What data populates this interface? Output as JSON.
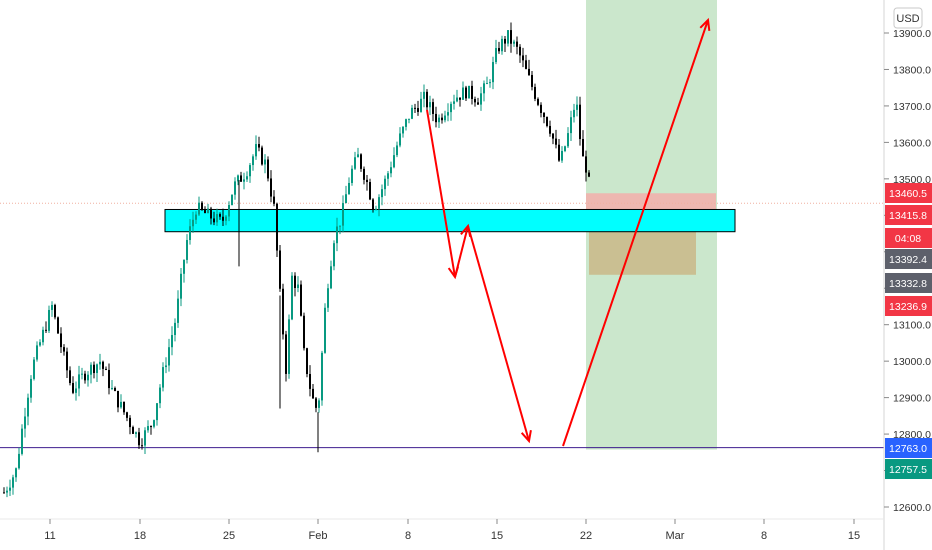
{
  "currency_label": "USD",
  "chart_data": {
    "type": "candlestick",
    "y_axis_ticks": [
      12600,
      12700,
      12800,
      12900,
      13000,
      13100,
      13200,
      13300,
      13400,
      13500,
      13600,
      13700,
      13800,
      13900
    ],
    "y_tick_labels": [
      "12600.0",
      "12700.0",
      "12800.0",
      "12900.0",
      "13000.0",
      "13100.0",
      "13200.0",
      "13300.0",
      "13400.0",
      "13500.0",
      "13600.0",
      "13700.0",
      "13800.0",
      "13900.0"
    ],
    "x_tick_labels": [
      "11",
      "18",
      "25",
      "Feb",
      "8",
      "15",
      "22",
      "Mar",
      "8",
      "15"
    ],
    "price_badges": [
      {
        "label": "13460.5",
        "color": "#f23645"
      },
      {
        "label": "13415.8",
        "color": "#f23645"
      },
      {
        "label": "04:08",
        "color": "#f23645"
      },
      {
        "label": "13392.4",
        "color": "#5d606b"
      },
      {
        "label": "13332.8",
        "color": "#5d606b"
      },
      {
        "label": "13236.9",
        "color": "#f23645"
      },
      {
        "label": "12763.0",
        "color": "#2962ff"
      },
      {
        "label": "12757.5",
        "color": "#089981"
      }
    ],
    "support_line": 12763.0,
    "last_price": 13415.8,
    "zone": {
      "top": 13416,
      "bottom": 13355
    },
    "target_zone": {
      "top": 13990,
      "bottom": 12757.5
    },
    "risk_zone": {
      "top": 13460.5,
      "bottom": 13392.4
    },
    "reward_zone": {
      "top": 13392.4,
      "bottom": 13236.9
    },
    "colors": {
      "up": "#089981",
      "down": "#000000",
      "arrow": "#ff0000",
      "zone": "#00ffff",
      "target": "#c8e6c9",
      "support": "#3f1d8f"
    }
  }
}
